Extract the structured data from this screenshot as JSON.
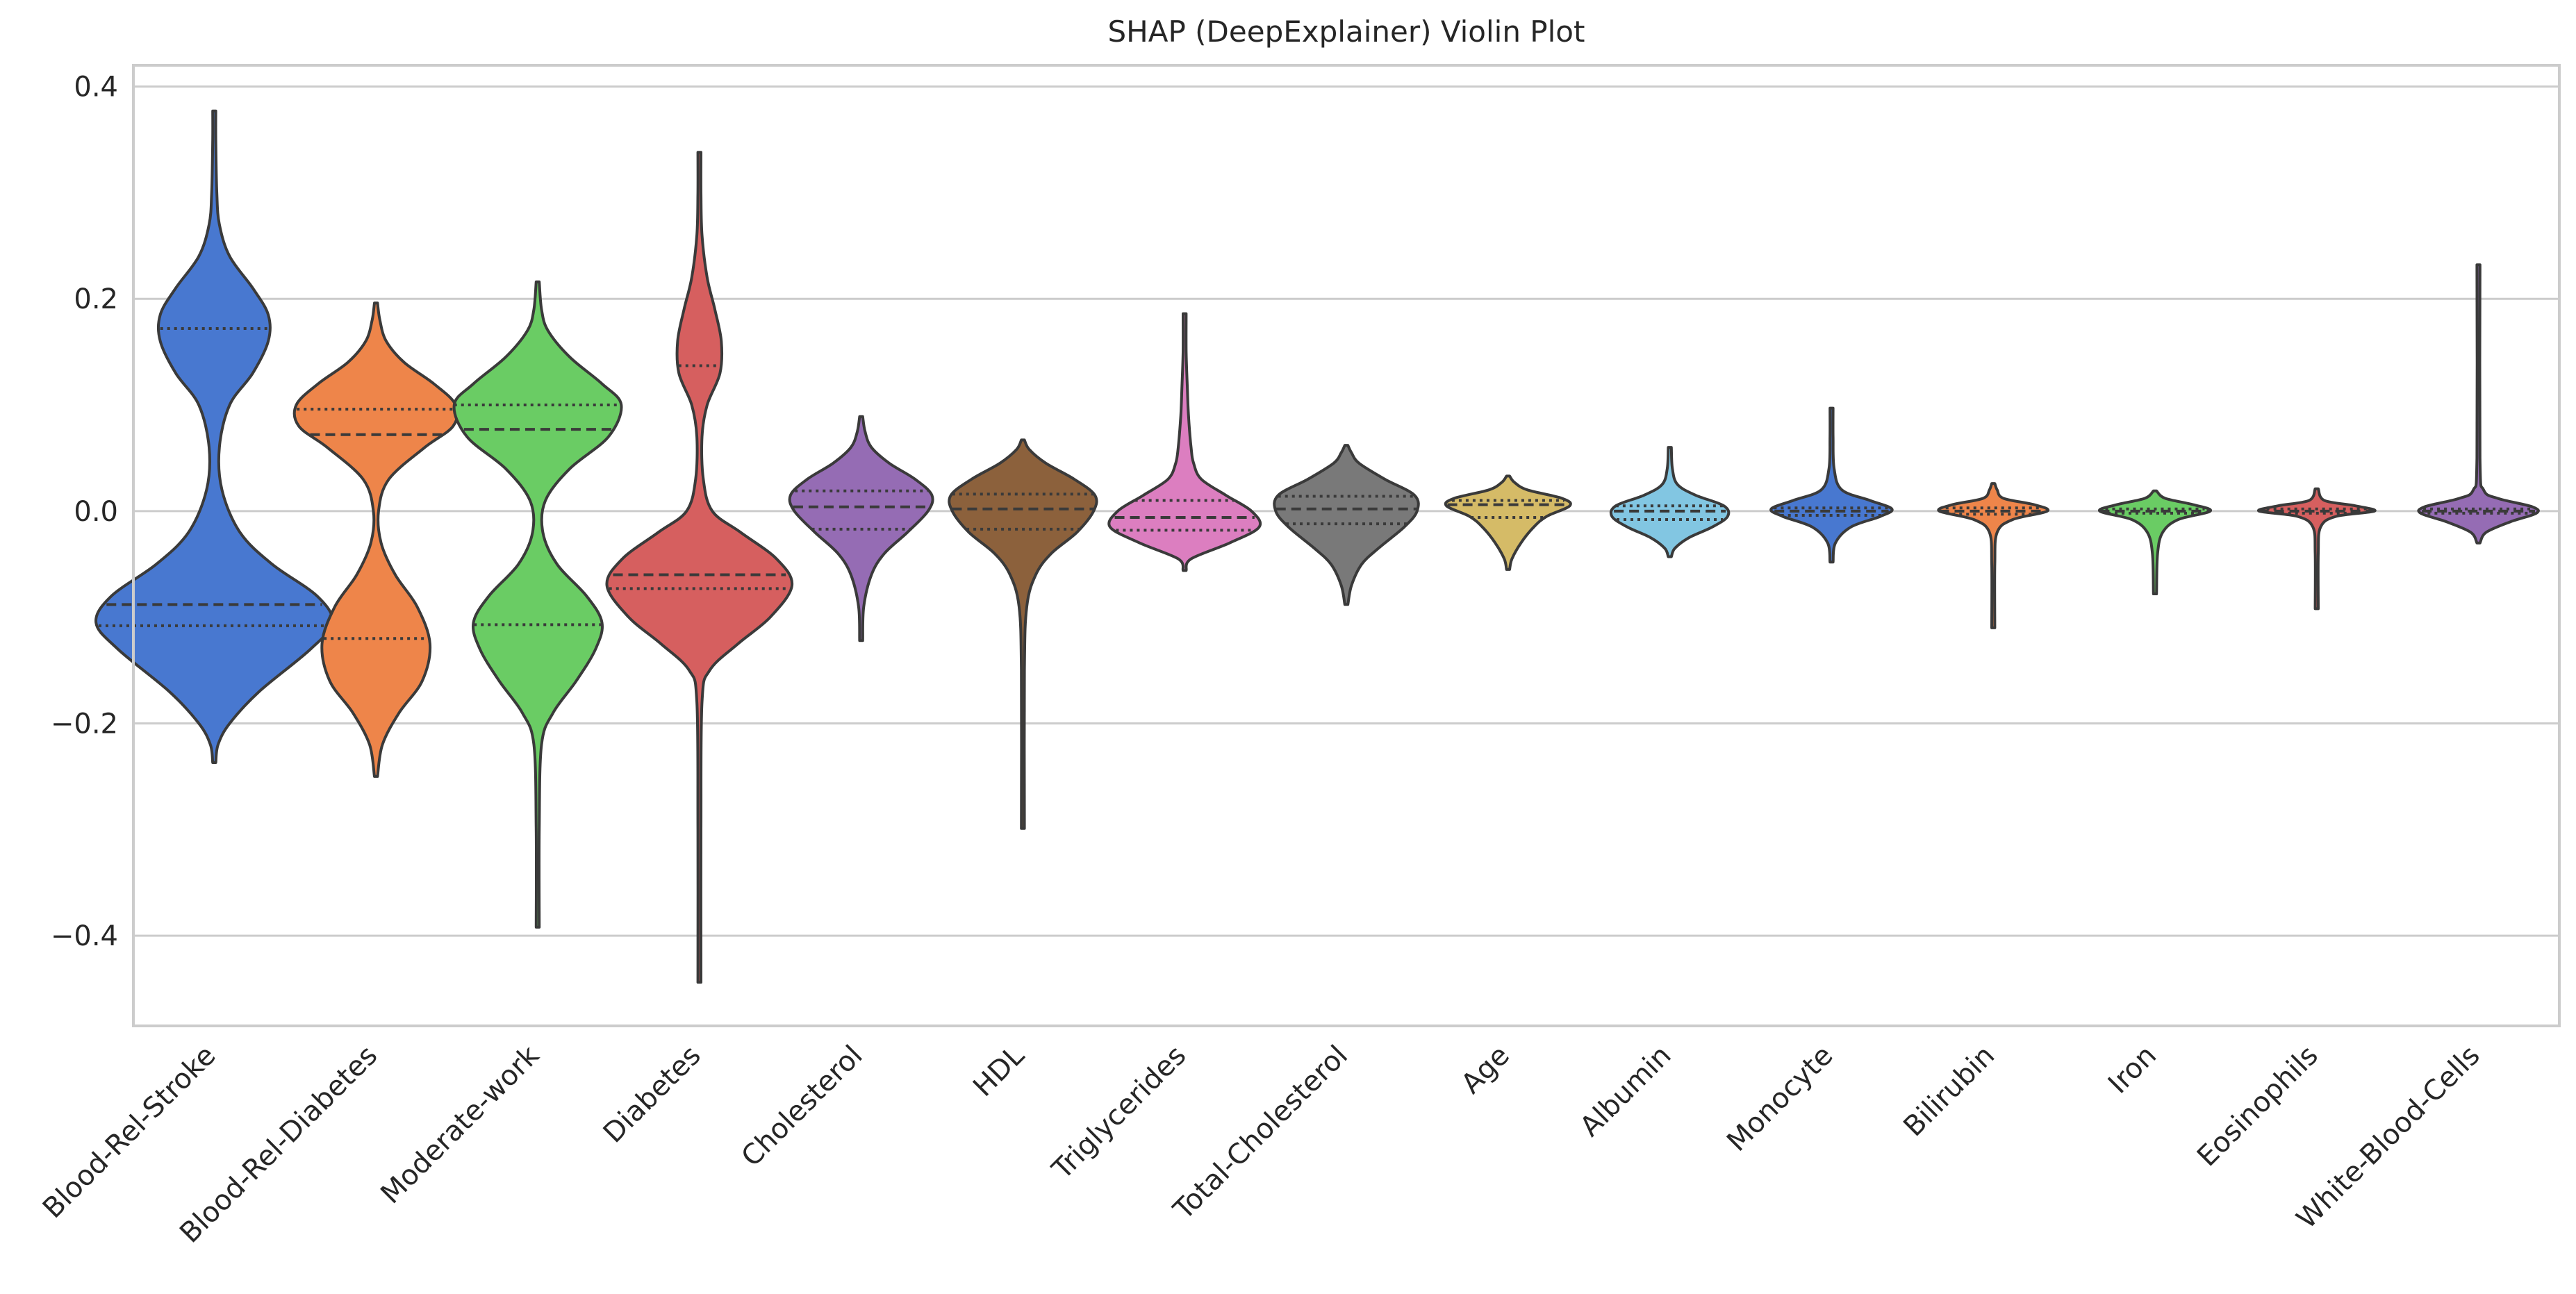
{
  "chart_data": {
    "type": "violin",
    "title": "SHAP (DeepExplainer) Violin Plot",
    "xlabel": "",
    "ylabel": "",
    "ylim": [
      -0.485,
      0.42
    ],
    "yticks": [
      {
        "value": 0.4,
        "label": "0.4"
      },
      {
        "value": 0.2,
        "label": "0.2"
      },
      {
        "value": 0.0,
        "label": "0.0"
      },
      {
        "value": -0.2,
        "label": "−0.2"
      },
      {
        "value": -0.4,
        "label": "−0.4"
      }
    ],
    "grid": true,
    "legend": "none",
    "inner": "quartile",
    "categories": [
      {
        "name": "Blood-Rel-Stroke",
        "color": "#4878d0",
        "min": -0.237,
        "max": 0.377,
        "q1": -0.108,
        "median": -0.088,
        "q3": 0.172,
        "density": [
          [
            -0.237,
            0.0
          ],
          [
            -0.22,
            0.03
          ],
          [
            -0.2,
            0.12
          ],
          [
            -0.17,
            0.35
          ],
          [
            -0.13,
            0.75
          ],
          [
            -0.105,
            0.92
          ],
          [
            -0.08,
            0.8
          ],
          [
            -0.05,
            0.45
          ],
          [
            -0.02,
            0.2
          ],
          [
            0.02,
            0.06
          ],
          [
            0.06,
            0.04
          ],
          [
            0.1,
            0.12
          ],
          [
            0.13,
            0.3
          ],
          [
            0.16,
            0.42
          ],
          [
            0.185,
            0.42
          ],
          [
            0.21,
            0.3
          ],
          [
            0.24,
            0.12
          ],
          [
            0.27,
            0.04
          ],
          [
            0.3,
            0.02
          ],
          [
            0.35,
            0.01
          ],
          [
            0.377,
            0.0
          ]
        ]
      },
      {
        "name": "Blood-Rel-Diabetes",
        "color": "#ee854a",
        "min": -0.25,
        "max": 0.196,
        "q1": -0.12,
        "median": 0.072,
        "q3": 0.096,
        "density": [
          [
            -0.25,
            0.0
          ],
          [
            -0.22,
            0.05
          ],
          [
            -0.19,
            0.18
          ],
          [
            -0.16,
            0.36
          ],
          [
            -0.125,
            0.42
          ],
          [
            -0.09,
            0.32
          ],
          [
            -0.06,
            0.15
          ],
          [
            -0.03,
            0.04
          ],
          [
            0.0,
            0.02
          ],
          [
            0.03,
            0.1
          ],
          [
            0.06,
            0.38
          ],
          [
            0.08,
            0.6
          ],
          [
            0.1,
            0.62
          ],
          [
            0.12,
            0.45
          ],
          [
            0.14,
            0.22
          ],
          [
            0.16,
            0.08
          ],
          [
            0.18,
            0.03
          ],
          [
            0.196,
            0.0
          ]
        ]
      },
      {
        "name": "Moderate-work",
        "color": "#6acc64",
        "min": -0.392,
        "max": 0.216,
        "q1": -0.107,
        "median": 0.077,
        "q3": 0.1,
        "density": [
          [
            -0.392,
            0.0
          ],
          [
            -0.3,
            0.01
          ],
          [
            -0.22,
            0.03
          ],
          [
            -0.19,
            0.12
          ],
          [
            -0.16,
            0.3
          ],
          [
            -0.13,
            0.45
          ],
          [
            -0.105,
            0.5
          ],
          [
            -0.08,
            0.38
          ],
          [
            -0.05,
            0.15
          ],
          [
            -0.02,
            0.04
          ],
          [
            0.01,
            0.06
          ],
          [
            0.04,
            0.25
          ],
          [
            0.07,
            0.55
          ],
          [
            0.1,
            0.65
          ],
          [
            0.12,
            0.5
          ],
          [
            0.145,
            0.25
          ],
          [
            0.17,
            0.08
          ],
          [
            0.19,
            0.03
          ],
          [
            0.216,
            0.0
          ]
        ]
      },
      {
        "name": "Diabetes",
        "color": "#d65f5f",
        "min": -0.444,
        "max": 0.338,
        "q1": -0.073,
        "median": -0.06,
        "q3": 0.137,
        "density": [
          [
            -0.444,
            0.0
          ],
          [
            -0.3,
            0.01
          ],
          [
            -0.18,
            0.02
          ],
          [
            -0.15,
            0.08
          ],
          [
            -0.125,
            0.3
          ],
          [
            -0.1,
            0.55
          ],
          [
            -0.07,
            0.72
          ],
          [
            -0.045,
            0.6
          ],
          [
            -0.02,
            0.32
          ],
          [
            0.0,
            0.1
          ],
          [
            0.03,
            0.03
          ],
          [
            0.07,
            0.02
          ],
          [
            0.1,
            0.06
          ],
          [
            0.13,
            0.16
          ],
          [
            0.16,
            0.17
          ],
          [
            0.19,
            0.12
          ],
          [
            0.22,
            0.06
          ],
          [
            0.26,
            0.02
          ],
          [
            0.3,
            0.01
          ],
          [
            0.338,
            0.0
          ]
        ]
      },
      {
        "name": "Cholesterol",
        "color": "#956cb4",
        "min": -0.122,
        "max": 0.089,
        "q1": -0.017,
        "median": 0.004,
        "q3": 0.019,
        "density": [
          [
            -0.122,
            0.0
          ],
          [
            -0.09,
            0.02
          ],
          [
            -0.06,
            0.08
          ],
          [
            -0.04,
            0.18
          ],
          [
            -0.02,
            0.36
          ],
          [
            0.0,
            0.52
          ],
          [
            0.015,
            0.55
          ],
          [
            0.03,
            0.42
          ],
          [
            0.045,
            0.22
          ],
          [
            0.06,
            0.08
          ],
          [
            0.075,
            0.03
          ],
          [
            0.089,
            0.0
          ]
        ]
      },
      {
        "name": "HDL",
        "color": "#8c613c",
        "min": -0.299,
        "max": 0.067,
        "q1": -0.017,
        "median": 0.002,
        "q3": 0.016,
        "density": [
          [
            -0.299,
            0.0
          ],
          [
            -0.15,
            0.005
          ],
          [
            -0.09,
            0.03
          ],
          [
            -0.06,
            0.1
          ],
          [
            -0.04,
            0.22
          ],
          [
            -0.02,
            0.42
          ],
          [
            0.0,
            0.55
          ],
          [
            0.015,
            0.56
          ],
          [
            0.03,
            0.4
          ],
          [
            0.045,
            0.18
          ],
          [
            0.058,
            0.05
          ],
          [
            0.067,
            0.0
          ]
        ]
      },
      {
        "name": "Triglycerides",
        "color": "#dc7ec0",
        "min": -0.056,
        "max": 0.186,
        "q1": -0.018,
        "median": -0.006,
        "q3": 0.01,
        "density": [
          [
            -0.056,
            0.0
          ],
          [
            -0.045,
            0.05
          ],
          [
            -0.03,
            0.35
          ],
          [
            -0.015,
            0.58
          ],
          [
            0.0,
            0.52
          ],
          [
            0.015,
            0.32
          ],
          [
            0.03,
            0.13
          ],
          [
            0.045,
            0.07
          ],
          [
            0.06,
            0.05
          ],
          [
            0.09,
            0.03
          ],
          [
            0.12,
            0.02
          ],
          [
            0.15,
            0.01
          ],
          [
            0.186,
            0.0
          ]
        ]
      },
      {
        "name": "Total-Cholesterol",
        "color": "#797979",
        "min": -0.088,
        "max": 0.062,
        "q1": -0.012,
        "median": 0.002,
        "q3": 0.014,
        "density": [
          [
            -0.088,
            0.0
          ],
          [
            -0.07,
            0.04
          ],
          [
            -0.05,
            0.12
          ],
          [
            -0.035,
            0.25
          ],
          [
            -0.015,
            0.45
          ],
          [
            0.0,
            0.55
          ],
          [
            0.015,
            0.53
          ],
          [
            0.03,
            0.3
          ],
          [
            0.045,
            0.1
          ],
          [
            0.055,
            0.04
          ],
          [
            0.062,
            0.0
          ]
        ]
      },
      {
        "name": "Age",
        "color": "#d5bb67",
        "min": -0.055,
        "max": 0.033,
        "q1": -0.006,
        "median": 0.006,
        "q3": 0.01,
        "density": [
          [
            -0.055,
            0.0
          ],
          [
            -0.045,
            0.03
          ],
          [
            -0.03,
            0.1
          ],
          [
            -0.015,
            0.2
          ],
          [
            -0.005,
            0.3
          ],
          [
            0.005,
            0.48
          ],
          [
            0.012,
            0.42
          ],
          [
            0.02,
            0.15
          ],
          [
            0.027,
            0.05
          ],
          [
            0.033,
            0.0
          ]
        ]
      },
      {
        "name": "Albumin",
        "color": "#82c6e2",
        "min": -0.043,
        "max": 0.06,
        "q1": -0.008,
        "median": 0.0,
        "q3": 0.005,
        "density": [
          [
            -0.043,
            0.0
          ],
          [
            -0.035,
            0.04
          ],
          [
            -0.025,
            0.15
          ],
          [
            -0.015,
            0.33
          ],
          [
            -0.005,
            0.45
          ],
          [
            0.005,
            0.42
          ],
          [
            0.015,
            0.2
          ],
          [
            0.025,
            0.06
          ],
          [
            0.04,
            0.02
          ],
          [
            0.06,
            0.0
          ]
        ]
      },
      {
        "name": "Monocyte",
        "color": "#4878d0",
        "min": -0.048,
        "max": 0.097,
        "q1": -0.004,
        "median": 0.0,
        "q3": 0.003,
        "density": [
          [
            -0.048,
            0.0
          ],
          [
            -0.03,
            0.03
          ],
          [
            -0.015,
            0.15
          ],
          [
            -0.005,
            0.38
          ],
          [
            0.002,
            0.47
          ],
          [
            0.01,
            0.3
          ],
          [
            0.02,
            0.08
          ],
          [
            0.04,
            0.02
          ],
          [
            0.07,
            0.01
          ],
          [
            0.097,
            0.0
          ]
        ]
      },
      {
        "name": "Bilirubin",
        "color": "#ee854a",
        "min": -0.11,
        "max": 0.026,
        "q1": -0.003,
        "median": 0.0,
        "q3": 0.003,
        "density": [
          [
            -0.11,
            0.0
          ],
          [
            -0.05,
            0.01
          ],
          [
            -0.02,
            0.03
          ],
          [
            -0.008,
            0.15
          ],
          [
            0.0,
            0.42
          ],
          [
            0.006,
            0.32
          ],
          [
            0.012,
            0.08
          ],
          [
            0.02,
            0.03
          ],
          [
            0.026,
            0.0
          ]
        ]
      },
      {
        "name": "Iron",
        "color": "#6acc64",
        "min": -0.078,
        "max": 0.019,
        "q1": -0.002,
        "median": 0.0,
        "q3": 0.002,
        "density": [
          [
            -0.078,
            0.0
          ],
          [
            -0.04,
            0.02
          ],
          [
            -0.02,
            0.06
          ],
          [
            -0.008,
            0.18
          ],
          [
            0.0,
            0.43
          ],
          [
            0.006,
            0.3
          ],
          [
            0.012,
            0.08
          ],
          [
            0.019,
            0.0
          ]
        ]
      },
      {
        "name": "Eosinophils",
        "color": "#d65f5f",
        "min": -0.092,
        "max": 0.021,
        "q1": -0.002,
        "median": 0.0,
        "q3": 0.002,
        "density": [
          [
            -0.092,
            0.0
          ],
          [
            -0.04,
            0.01
          ],
          [
            -0.015,
            0.03
          ],
          [
            -0.005,
            0.15
          ],
          [
            0.0,
            0.45
          ],
          [
            0.005,
            0.3
          ],
          [
            0.01,
            0.06
          ],
          [
            0.021,
            0.0
          ]
        ]
      },
      {
        "name": "White-Blood-Cells",
        "color": "#956cb4",
        "min": -0.03,
        "max": 0.232,
        "q1": -0.002,
        "median": 0.0,
        "q3": 0.002,
        "density": [
          [
            -0.03,
            0.0
          ],
          [
            -0.02,
            0.06
          ],
          [
            -0.01,
            0.25
          ],
          [
            -0.002,
            0.45
          ],
          [
            0.004,
            0.42
          ],
          [
            0.012,
            0.15
          ],
          [
            0.02,
            0.04
          ],
          [
            0.05,
            0.01
          ],
          [
            0.232,
            0.0
          ]
        ]
      }
    ]
  }
}
